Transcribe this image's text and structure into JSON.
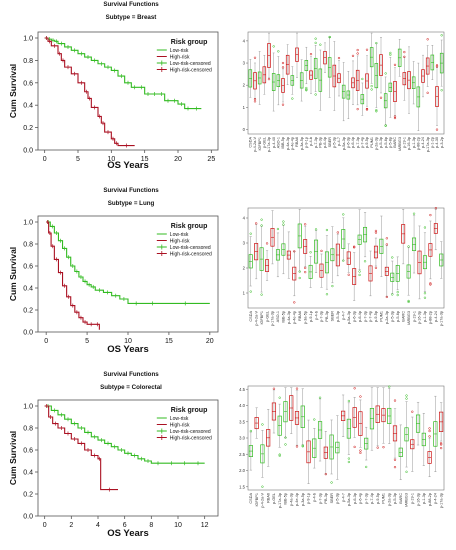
{
  "chart_data": [
    {
      "type": "line",
      "title": "Survival Functions",
      "subtitle": "Subtype = Breast",
      "xlabel": "OS Years",
      "ylabel": "Cum Survival",
      "xlim": [
        -1,
        26
      ],
      "ylim": [
        0,
        1.0
      ],
      "xticks": [
        0,
        5,
        10,
        15,
        20,
        25
      ],
      "yticks": [
        0.0,
        0.2,
        0.4,
        0.6,
        0.8,
        1.0
      ],
      "xtick_labels": [
        "0",
        "5",
        "10",
        "15",
        "20",
        "25"
      ],
      "ytick_labels": [
        "0.0",
        "0.2",
        "0.4",
        "0.6",
        "0.8",
        "1.0"
      ],
      "legend": {
        "title": "Risk group",
        "position": "top-right",
        "entries": [
          "Low-risk",
          "High-risk",
          "Low-risk-censored",
          "High-risk-censored"
        ]
      },
      "series": [
        {
          "name": "Low-risk",
          "color": "#33bb22",
          "x": [
            0,
            0.5,
            1,
            1.5,
            2,
            3,
            4,
            5,
            6,
            7,
            8,
            9,
            10,
            11,
            12,
            13,
            14,
            15,
            16,
            17,
            18,
            19,
            20,
            21,
            22,
            23.5
          ],
          "y": [
            1.0,
            0.99,
            0.98,
            0.97,
            0.95,
            0.92,
            0.89,
            0.86,
            0.83,
            0.8,
            0.77,
            0.74,
            0.71,
            0.66,
            0.6,
            0.56,
            0.56,
            0.5,
            0.5,
            0.5,
            0.44,
            0.44,
            0.41,
            0.37,
            0.37,
            0.37
          ]
        },
        {
          "name": "High-risk",
          "color": "#aa1122",
          "x": [
            0,
            0.5,
            1,
            2,
            2.5,
            3,
            4,
            5,
            6,
            6.5,
            7,
            8,
            8.5,
            9,
            10,
            10.5,
            11,
            13.5
          ],
          "y": [
            1.0,
            0.97,
            0.93,
            0.86,
            0.8,
            0.74,
            0.68,
            0.6,
            0.52,
            0.46,
            0.38,
            0.3,
            0.24,
            0.16,
            0.1,
            0.06,
            0.04,
            0.04
          ]
        }
      ]
    },
    {
      "type": "line",
      "title": "Survival Functions",
      "subtitle": "Subtype = Lung",
      "xlabel": "OS Years",
      "ylabel": "Cum Survival",
      "xlim": [
        -1,
        21
      ],
      "ylim": [
        0,
        1.0
      ],
      "xticks": [
        0,
        5,
        10,
        15,
        20
      ],
      "yticks": [
        0.0,
        0.2,
        0.4,
        0.6,
        0.8,
        1.0
      ],
      "xtick_labels": [
        "0",
        "5",
        "10",
        "15",
        "20"
      ],
      "ytick_labels": [
        "0.0",
        "0.2",
        "0.4",
        "0.6",
        "0.8",
        "1.0"
      ],
      "legend": {
        "title": "Risk group",
        "position": "top-right",
        "entries": [
          "Low-risk",
          "High-risk",
          "Low-risk-censored",
          "High-risk-censored"
        ]
      },
      "series": [
        {
          "name": "Low-risk",
          "color": "#33bb22",
          "x": [
            0,
            0.5,
            1,
            1.5,
            2,
            2.5,
            3,
            3.5,
            4,
            4.5,
            5,
            5.5,
            6,
            7,
            8,
            9,
            10,
            12,
            14,
            20
          ],
          "y": [
            1.0,
            0.96,
            0.9,
            0.83,
            0.76,
            0.68,
            0.6,
            0.55,
            0.5,
            0.46,
            0.43,
            0.41,
            0.38,
            0.36,
            0.33,
            0.3,
            0.26,
            0.26,
            0.26,
            0.26
          ]
        },
        {
          "name": "High-risk",
          "color": "#aa1122",
          "x": [
            0,
            0.3,
            0.6,
            1,
            1.5,
            2,
            2.5,
            3,
            3.5,
            4,
            4.5,
            5,
            6,
            6.5
          ],
          "y": [
            1.0,
            0.9,
            0.78,
            0.66,
            0.54,
            0.42,
            0.32,
            0.24,
            0.18,
            0.13,
            0.09,
            0.07,
            0.07,
            0.02
          ]
        }
      ]
    },
    {
      "type": "line",
      "title": "Survival Functions",
      "subtitle": "Subtype = Colorectal",
      "xlabel": "OS Years",
      "ylabel": "Cum Survival",
      "xlim": [
        -0.5,
        13
      ],
      "ylim": [
        0,
        1.0
      ],
      "xticks": [
        0,
        2,
        4,
        6,
        8,
        10,
        12
      ],
      "yticks": [
        0.0,
        0.2,
        0.4,
        0.6,
        0.8,
        1.0
      ],
      "xtick_labels": [
        "0",
        "2",
        "4",
        "6",
        "8",
        "10",
        "12"
      ],
      "ytick_labels": [
        "0.0",
        "0.2",
        "0.4",
        "0.6",
        "0.8",
        "1.0"
      ],
      "legend": {
        "title": "Risk group",
        "position": "top-right",
        "entries": [
          "Low-risk",
          "High-risk",
          "Low-risk-censored",
          "High-risk-censored"
        ]
      },
      "series": [
        {
          "name": "Low-risk",
          "color": "#33bb22",
          "x": [
            0,
            0.5,
            1,
            1.5,
            2,
            2.5,
            3,
            3.5,
            4,
            4.5,
            5,
            5.5,
            6,
            6.5,
            7,
            7.5,
            8,
            9,
            10,
            11,
            12
          ],
          "y": [
            1.0,
            0.96,
            0.92,
            0.88,
            0.84,
            0.8,
            0.76,
            0.72,
            0.69,
            0.66,
            0.63,
            0.6,
            0.57,
            0.55,
            0.52,
            0.5,
            0.48,
            0.48,
            0.48,
            0.48,
            0.48
          ]
        },
        {
          "name": "High-risk",
          "color": "#aa1122",
          "x": [
            0,
            0.3,
            0.6,
            1,
            1.5,
            2,
            2.5,
            3,
            3.5,
            4,
            4.2,
            5.5
          ],
          "y": [
            1.0,
            0.9,
            0.84,
            0.8,
            0.75,
            0.7,
            0.66,
            0.6,
            0.55,
            0.52,
            0.24,
            0.24
          ]
        }
      ]
    },
    {
      "type": "box",
      "yticks": [
        0,
        1,
        2,
        3,
        4
      ],
      "ylim": [
        -0.2,
        4.4
      ],
      "categories": [
        "CSDA",
        "p-4-2a-V",
        "IGFBP1",
        "p-GEL",
        "p-17a-3p",
        "p-4-40",
        "ASO-1",
        "IBB-5p",
        "p-4a-3p",
        "p-4e-4p",
        "RBA6",
        "p-3a-5p",
        "p-9-1p",
        "p-4-b",
        "p-7-3p",
        "PB-3p",
        "p-6-4p",
        "SBER",
        "p-5-3p",
        "p-4-7",
        "p-5a-3p",
        "p-6-3p",
        "p-6-4p",
        "p-7-3p",
        "p-7-4p",
        "p-9-5p",
        "PUM1",
        "p-2a-3p",
        "p-5-3p",
        "p-5-6p",
        "p-5-8p",
        "BARC",
        "IARBG3",
        "p-19-1",
        "p-16-3p",
        "p-1-3p",
        "p-88-2p",
        "p-4-24",
        "p-17a-3p",
        "p-1-2p",
        "p-4-30",
        "p-3-2p"
      ],
      "series": [
        {
          "name": "",
          "color": "#33bb22"
        },
        {
          "name": "",
          "color": "#cc1111"
        }
      ]
    },
    {
      "type": "box",
      "yticks": [
        1,
        2,
        3,
        4
      ],
      "ylim": [
        0.4,
        4.4
      ],
      "categories": [
        "CSDA",
        "p-4-2a-V",
        "IGFBP1",
        "p-GEL",
        "p-17a-3p",
        "ASO-1",
        "IBB-5p",
        "p-4a-3p",
        "p-4e-4p",
        "RBA6",
        "p-3a-5p",
        "p-9-1p",
        "p-4-b",
        "p-7-3p",
        "PB-3p",
        "SBER",
        "p-5-3p",
        "p-4-7",
        "p-5a-3p",
        "p-6-3p",
        "p-6-4p",
        "p-7-3p",
        "p-7-4p",
        "p-9-5p",
        "PUM1",
        "p-2a-3p",
        "p-5-3p",
        "p-5-6p",
        "BARC",
        "IARBG3",
        "p-19-1",
        "p-16-3p",
        "p-1-3p",
        "p-88-2p",
        "p-4-24",
        "p-17a-3p"
      ],
      "series": [
        {
          "name": "",
          "color": "#33bb22"
        },
        {
          "name": "",
          "color": "#cc1111"
        }
      ]
    },
    {
      "type": "box",
      "yticks": [
        1.5,
        2.0,
        2.5,
        3.0,
        3.5,
        4.0,
        4.5
      ],
      "ytick_labels": [
        "1.5",
        "2.0",
        "2.5",
        "3.0",
        "3.5",
        "4.0",
        "4.5"
      ],
      "ylim": [
        1.4,
        4.6
      ],
      "categories": [
        "CSDA",
        "IGFBP1",
        "p-4-2a-V",
        "RBA6",
        "p-GEL",
        "p-17a-3p",
        "IBB-5p",
        "p-4a-3p",
        "p-4e-4p",
        "p-3a-5p",
        "p-9-1p",
        "p-4-b",
        "p-7-3p",
        "PB-3p",
        "SBER",
        "p-5-3p",
        "p-4-7",
        "p-5a-3p",
        "p-6-3p",
        "p-6-4p",
        "p-7-3p",
        "p-7-4p",
        "p-9-5p",
        "PUM1",
        "p-2a-3p",
        "p-5-3p",
        "BARC",
        "IARBG3",
        "p-19-1",
        "p-16-3p",
        "p-1-3p",
        "p-88-2p",
        "p-4-24",
        "p-17a-3p"
      ],
      "series": [
        {
          "name": "",
          "color": "#33bb22"
        },
        {
          "name": "",
          "color": "#cc1111"
        }
      ]
    }
  ]
}
